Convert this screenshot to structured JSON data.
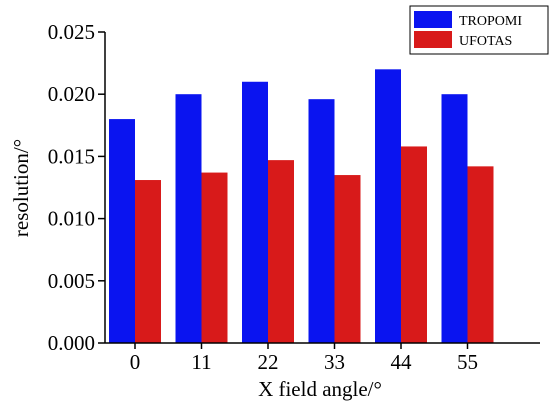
{
  "chart_data": {
    "type": "bar",
    "categories": [
      "0",
      "11",
      "22",
      "33",
      "44",
      "55"
    ],
    "series": [
      {
        "name": "TROPOMI",
        "values": [
          0.018,
          0.02,
          0.021,
          0.0196,
          0.022,
          0.02
        ],
        "color": "#0a14f0"
      },
      {
        "name": "UFOTAS",
        "values": [
          0.0131,
          0.0137,
          0.0147,
          0.0135,
          0.0158,
          0.0142
        ],
        "color": "#d81a1a"
      }
    ],
    "xlabel": "X field angle/°",
    "ylabel": "resolution/°",
    "ylim": [
      0,
      0.025
    ],
    "yticks": [
      "0.000",
      "0.005",
      "0.010",
      "0.015",
      "0.020",
      "0.025"
    ],
    "yticks_values": [
      0,
      0.005,
      0.01,
      0.015,
      0.02,
      0.025
    ],
    "legend_position": "top-right",
    "grid": false
  }
}
